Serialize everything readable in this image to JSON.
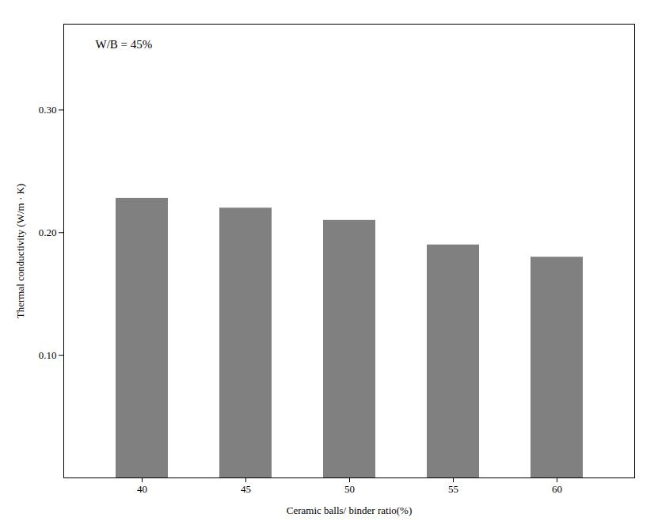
{
  "chart_data": {
    "type": "bar",
    "categories": [
      "40",
      "45",
      "50",
      "55",
      "60"
    ],
    "values": [
      0.228,
      0.22,
      0.21,
      0.19,
      0.18
    ],
    "color": "#808080",
    "xlabel": "Ceramic balls/ binder ratio(%)",
    "ylabel": "Thermal conductivity (W/m · K)",
    "ylim": [
      0,
      0.37
    ],
    "yticks": [
      0.1,
      0.2,
      0.3
    ],
    "annotation": "W/B = 45%",
    "grid": false
  }
}
